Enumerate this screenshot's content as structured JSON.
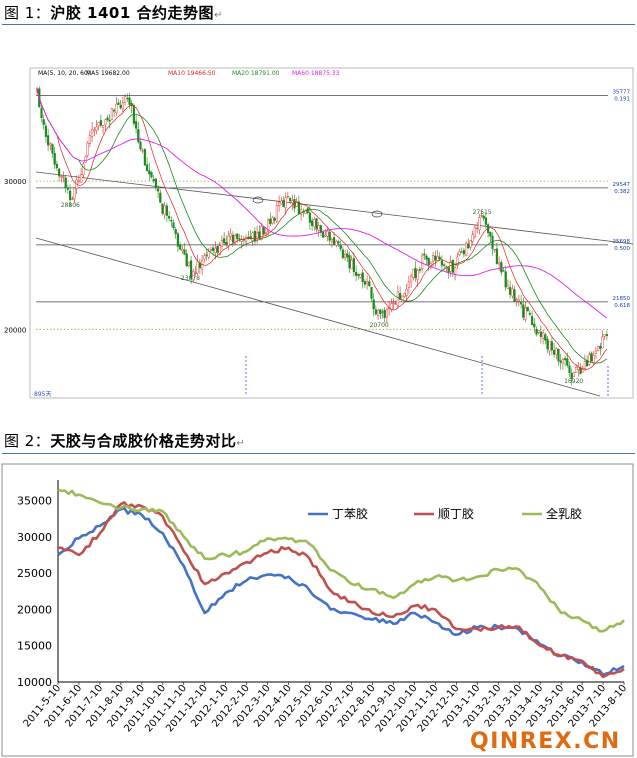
{
  "figure1": {
    "caption_prefix": "图 1：",
    "caption_title": "沪胶 1401 合约走势图",
    "caption_mark": "↵",
    "indicator": {
      "label": "MA(5, 10, 20, 60)",
      "items": [
        {
          "text": "MA5 19682.00",
          "color": "#000000"
        },
        {
          "text": "MA10 19466.50",
          "color": "#e02020"
        },
        {
          "text": "MA20 18791.00",
          "color": "#1a8a1a"
        },
        {
          "text": "MA60 18875.33",
          "color": "#e020e0"
        }
      ]
    },
    "price_ticks": [
      {
        "label": "30000",
        "value": 30000
      },
      {
        "label": "20000",
        "value": 20000
      }
    ],
    "fib_levels": [
      {
        "price": "35777",
        "ratio": "0.191",
        "value": 35777
      },
      {
        "price": "29547",
        "ratio": "0.382",
        "value": 29547
      },
      {
        "price": "25698",
        "ratio": "0.500",
        "value": 25698
      },
      {
        "price": "21850",
        "ratio": "0.618",
        "value": 21850
      }
    ],
    "annotations": [
      {
        "text": "28806",
        "value": 28806,
        "at": 0.06
      },
      {
        "text": "23878",
        "value": 23878,
        "at": 0.27
      },
      {
        "text": "20700",
        "value": 20700,
        "at": 0.6
      },
      {
        "text": "27515",
        "value": 27515,
        "at": 0.78
      },
      {
        "text": "16920",
        "value": 16920,
        "at": 0.94
      }
    ],
    "corner_label": "895天",
    "value_range": [
      15500,
      37500
    ],
    "ma_colors": {
      "ma10": "#e02020",
      "ma20": "#1a8a1a",
      "ma60": "#e020e0"
    },
    "candle_colors": {
      "up": "#e02020",
      "down": "#1a8a1a"
    }
  },
  "figure2": {
    "caption_prefix": "图 2：",
    "caption_title": "天胶与合成胶价格走势对比",
    "caption_mark": "↵",
    "watermark": "QINREX.CN",
    "chart_data": {
      "type": "line",
      "title": "",
      "xlabel": "",
      "ylabel": "",
      "ylim": [
        10000,
        37000
      ],
      "yticks": [
        10000,
        15000,
        20000,
        25000,
        30000,
        35000
      ],
      "x": [
        "2011-5-10",
        "2011-6-10",
        "2011-7-10",
        "2011-8-10",
        "2011-9-10",
        "2011-10-10",
        "2011-11-10",
        "2011-12-10",
        "2012-1-10",
        "2012-2-10",
        "2012-3-10",
        "2012-4-10",
        "2012-5-10",
        "2012-6-10",
        "2012-7-10",
        "2012-8-10",
        "2012-9-10",
        "2012-10-10",
        "2012-11-10",
        "2012-12-10",
        "2013-1-10",
        "2013-2-10",
        "2013-3-10",
        "2013-4-10",
        "2013-5-10",
        "2013-6-10",
        "2013-7-10",
        "2013-8-10"
      ],
      "legend_placement": "top-right",
      "series": [
        {
          "name": "丁苯胶",
          "color": "#4472c4",
          "values": [
            27500,
            29800,
            31500,
            33800,
            33000,
            30500,
            26000,
            19500,
            22300,
            24000,
            24800,
            24500,
            22600,
            20000,
            19500,
            18600,
            18000,
            19500,
            18200,
            16500,
            17500,
            17600,
            17200,
            15200,
            13600,
            12800,
            11000,
            12200
          ]
        },
        {
          "name": "顺丁胶",
          "color": "#c0504d",
          "values": [
            28500,
            27500,
            30500,
            34500,
            34200,
            32800,
            28000,
            23500,
            25000,
            26500,
            27800,
            28500,
            27000,
            22600,
            21000,
            19500,
            19000,
            20500,
            20000,
            17300,
            17300,
            17500,
            17600,
            15000,
            13600,
            12900,
            10700,
            11800
          ]
        },
        {
          "name": "全乳胶",
          "color": "#9bbb59",
          "values": [
            36500,
            35800,
            34700,
            34000,
            33800,
            33500,
            30000,
            27000,
            27500,
            28000,
            29800,
            29700,
            29000,
            25400,
            23500,
            22800,
            21600,
            23500,
            24500,
            24000,
            24500,
            25500,
            25500,
            23000,
            19500,
            18500,
            17000,
            18500
          ]
        }
      ]
    }
  }
}
